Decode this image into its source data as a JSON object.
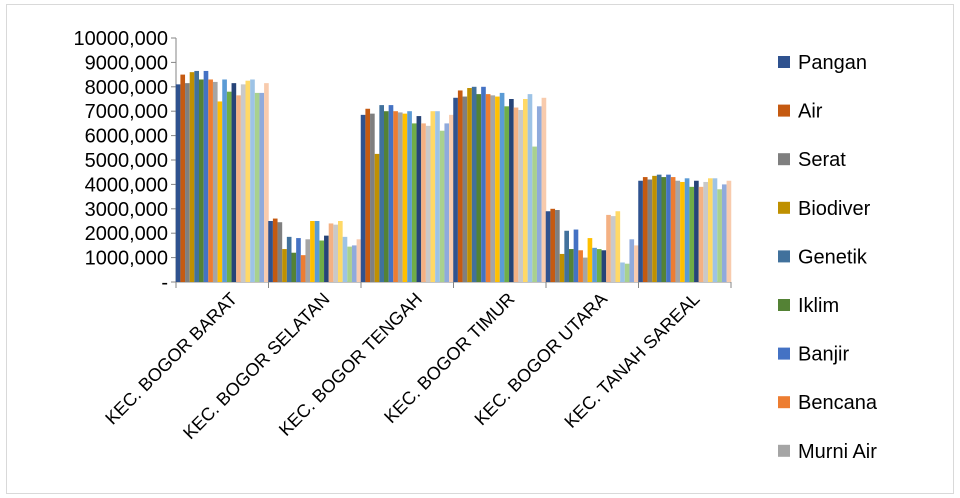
{
  "chart_data": {
    "type": "bar",
    "title": "",
    "xlabel": "",
    "ylabel": "",
    "ylim": [
      0,
      10000
    ],
    "yticks": [
      0,
      1000,
      2000,
      3000,
      4000,
      5000,
      6000,
      7000,
      8000,
      9000,
      10000
    ],
    "ytick_labels": [
      "-",
      "1000,000",
      "2000,000",
      "3000,000",
      "4000,000",
      "5000,000",
      "6000,000",
      "7000,000",
      "8000,000",
      "9000,000",
      "10000,000"
    ],
    "grid": false,
    "legend_position": "right",
    "categories": [
      "KEC. BOGOR BARAT",
      "KEC. BOGOR SELATAN",
      "KEC. BOGOR TENGAH",
      "KEC. BOGOR TIMUR",
      "KEC. BOGOR UTARA",
      "KEC. TANAH SAREAL"
    ],
    "series": [
      {
        "name": "Pangan",
        "color": "#2f528f",
        "values": [
          8100,
          2500,
          6850,
          7550,
          2900,
          4150
        ]
      },
      {
        "name": "Air",
        "color": "#c55a11",
        "values": [
          8500,
          2600,
          7100,
          7850,
          3000,
          4300
        ]
      },
      {
        "name": "Serat",
        "color": "#7f7f7f",
        "values": [
          8150,
          2450,
          6900,
          7600,
          2950,
          4200
        ]
      },
      {
        "name": "Biodiver",
        "color": "#bf9000",
        "values": [
          8600,
          1350,
          5250,
          7950,
          1150,
          4350
        ]
      },
      {
        "name": "Genetik",
        "color": "#41719c",
        "values": [
          8650,
          1850,
          7250,
          8000,
          2100,
          4400
        ]
      },
      {
        "name": "Iklim",
        "color": "#548235",
        "values": [
          8300,
          1200,
          7000,
          7700,
          1350,
          4300
        ]
      },
      {
        "name": "Banjir",
        "color": "#4472c4",
        "values": [
          8650,
          1800,
          7250,
          8000,
          2150,
          4400
        ]
      },
      {
        "name": "Bencana",
        "color": "#ed7d31",
        "values": [
          8300,
          1100,
          7000,
          7700,
          1300,
          4300
        ]
      },
      {
        "name": "Murni Air",
        "color": "#a5a5a5",
        "values": [
          8200,
          1750,
          6950,
          7650,
          1000,
          4150
        ]
      },
      {
        "name": "",
        "color": "#ffc000",
        "values": [
          7400,
          2500,
          6900,
          7600,
          1800,
          4100
        ]
      },
      {
        "name": "",
        "color": "#5b9bd5",
        "values": [
          8300,
          2500,
          7000,
          7750,
          1400,
          4250
        ]
      },
      {
        "name": "",
        "color": "#70ad47",
        "values": [
          7800,
          1700,
          6500,
          7200,
          1350,
          3900
        ]
      },
      {
        "name": "",
        "color": "#264478",
        "values": [
          8150,
          1900,
          6800,
          7500,
          1300,
          4150
        ]
      },
      {
        "name": "",
        "color": "#f4b183",
        "values": [
          7650,
          2400,
          6500,
          7150,
          2750,
          3900
        ]
      },
      {
        "name": "",
        "color": "#c9c9c9",
        "values": [
          8100,
          2350,
          6400,
          7050,
          2700,
          4100
        ]
      },
      {
        "name": "",
        "color": "#ffd966",
        "values": [
          8250,
          2500,
          7000,
          7500,
          2900,
          4250
        ]
      },
      {
        "name": "",
        "color": "#9dc3e6",
        "values": [
          8300,
          1850,
          7000,
          7700,
          800,
          4250
        ]
      },
      {
        "name": "",
        "color": "#a9d18e",
        "values": [
          7750,
          1450,
          6200,
          5550,
          750,
          3800
        ]
      },
      {
        "name": "",
        "color": "#8faadc",
        "values": [
          7750,
          1500,
          6500,
          7200,
          1750,
          4000
        ]
      },
      {
        "name": "",
        "color": "#f8cbad",
        "values": [
          8150,
          1750,
          6850,
          7550,
          1500,
          4150
        ]
      }
    ]
  }
}
